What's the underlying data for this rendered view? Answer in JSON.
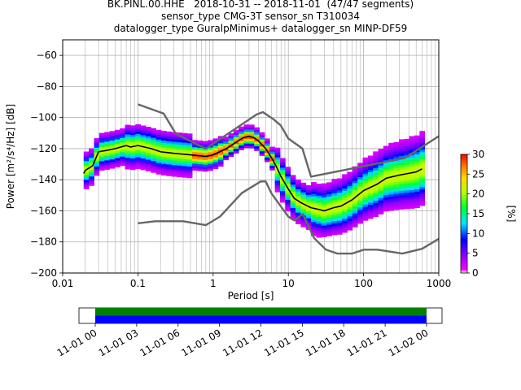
{
  "header": {
    "title_line1": "BK.PINL.00.HHE   2018-10-31 -- 2018-11-01  (47/47 segments)",
    "title_line2": "sensor_type CMG-3T sensor_sn T310034",
    "title_line3": "datalogger_type GuralpMinimus+ datalogger_sn MINP-DF59"
  },
  "chart_data": [
    {
      "type": "heatmap",
      "title": "BK.PINL.00.HHE   2018-10-31 -- 2018-11-01  (47/47 segments)",
      "xlabel": "Period [s]",
      "ylabel": "Power [m²/s⁴/Hz] [dB]",
      "xscale": "log",
      "xlim": [
        0.01,
        1000
      ],
      "ylim": [
        -200,
        -50
      ],
      "grid": true,
      "x_tick_labels": [
        "0.01",
        "0.1",
        "1",
        "10",
        "100",
        "1000"
      ],
      "x_tick_values": [
        0.01,
        0.1,
        1,
        10,
        100,
        1000
      ],
      "y_tick_values": [
        -200,
        -180,
        -160,
        -140,
        -120,
        -100,
        -80,
        -60
      ],
      "y_tick_labels": [
        "−200",
        "−180",
        "−160",
        "−140",
        "−120",
        "−100",
        "−80",
        "−60"
      ],
      "colorbar": {
        "label": "[%]",
        "min": 0,
        "max": 30,
        "ticks": [
          0,
          5,
          10,
          15,
          20,
          25,
          30
        ],
        "placement": "right"
      },
      "colors": {
        "nlnm_nhnm": "#666666",
        "mode_line": "#000000"
      },
      "series": [
        {
          "name": "",
          "role": "noise-model-high",
          "x": [
            0.1,
            0.22,
            0.32,
            0.8,
            3.8,
            4.6,
            6.3,
            7.9,
            10,
            15.4,
            20,
            354.8,
            1000
          ],
          "y": [
            -91.5,
            -97.4,
            -110.5,
            -120,
            -98,
            -96.5,
            -101,
            -105,
            -113.5,
            -120,
            -138,
            -126,
            -112
          ]
        },
        {
          "name": "",
          "role": "noise-model-low",
          "x": [
            0.1,
            0.17,
            0.4,
            0.8,
            1.24,
            2.4,
            4.3,
            5,
            6,
            10,
            12,
            15.6,
            21.9,
            31.6,
            45,
            70,
            101,
            154,
            328,
            600,
            1000
          ],
          "y": [
            -168,
            -166.7,
            -166.7,
            -169.2,
            -163.7,
            -148.6,
            -141.1,
            -141.1,
            -149,
            -163.8,
            -166.2,
            -162.1,
            -177.5,
            -185,
            -187.5,
            -187.5,
            -185,
            -185,
            -187.5,
            -184.4,
            -178
          ]
        },
        {
          "name": "",
          "role": "mode",
          "x": [
            0.019,
            0.02,
            0.025,
            0.03,
            0.04,
            0.05,
            0.07,
            0.08,
            0.1,
            0.15,
            0.2,
            0.3,
            0.5,
            0.8,
            1,
            1.5,
            2,
            2.5,
            3,
            3.5,
            4,
            5,
            6,
            7,
            8,
            10,
            12,
            15,
            20,
            25,
            30,
            40,
            50,
            70,
            100,
            150,
            200,
            300,
            500,
            600
          ],
          "y": [
            -136,
            -134,
            -131,
            -122,
            -121,
            -120,
            -118,
            -119,
            -118,
            -120,
            -122,
            -123,
            -124,
            -125,
            -124,
            -120,
            -116,
            -113,
            -112,
            -113,
            -115,
            -120,
            -126,
            -132,
            -138,
            -146,
            -152,
            -155,
            -158,
            -159,
            -160,
            -158,
            -157,
            -153,
            -147,
            -143,
            -139,
            -137,
            -135,
            -133
          ]
        }
      ]
    },
    {
      "type": "bar",
      "role": "data-availability",
      "x_tick_labels": [
        "11-01 00",
        "11-01 03",
        "11-01 06",
        "11-01 09",
        "11-01 12",
        "11-01 15",
        "11-01 18",
        "11-01 21",
        "11-02 00"
      ],
      "bands": [
        {
          "color": "#008000"
        },
        {
          "color": "#0000ff"
        }
      ]
    }
  ]
}
